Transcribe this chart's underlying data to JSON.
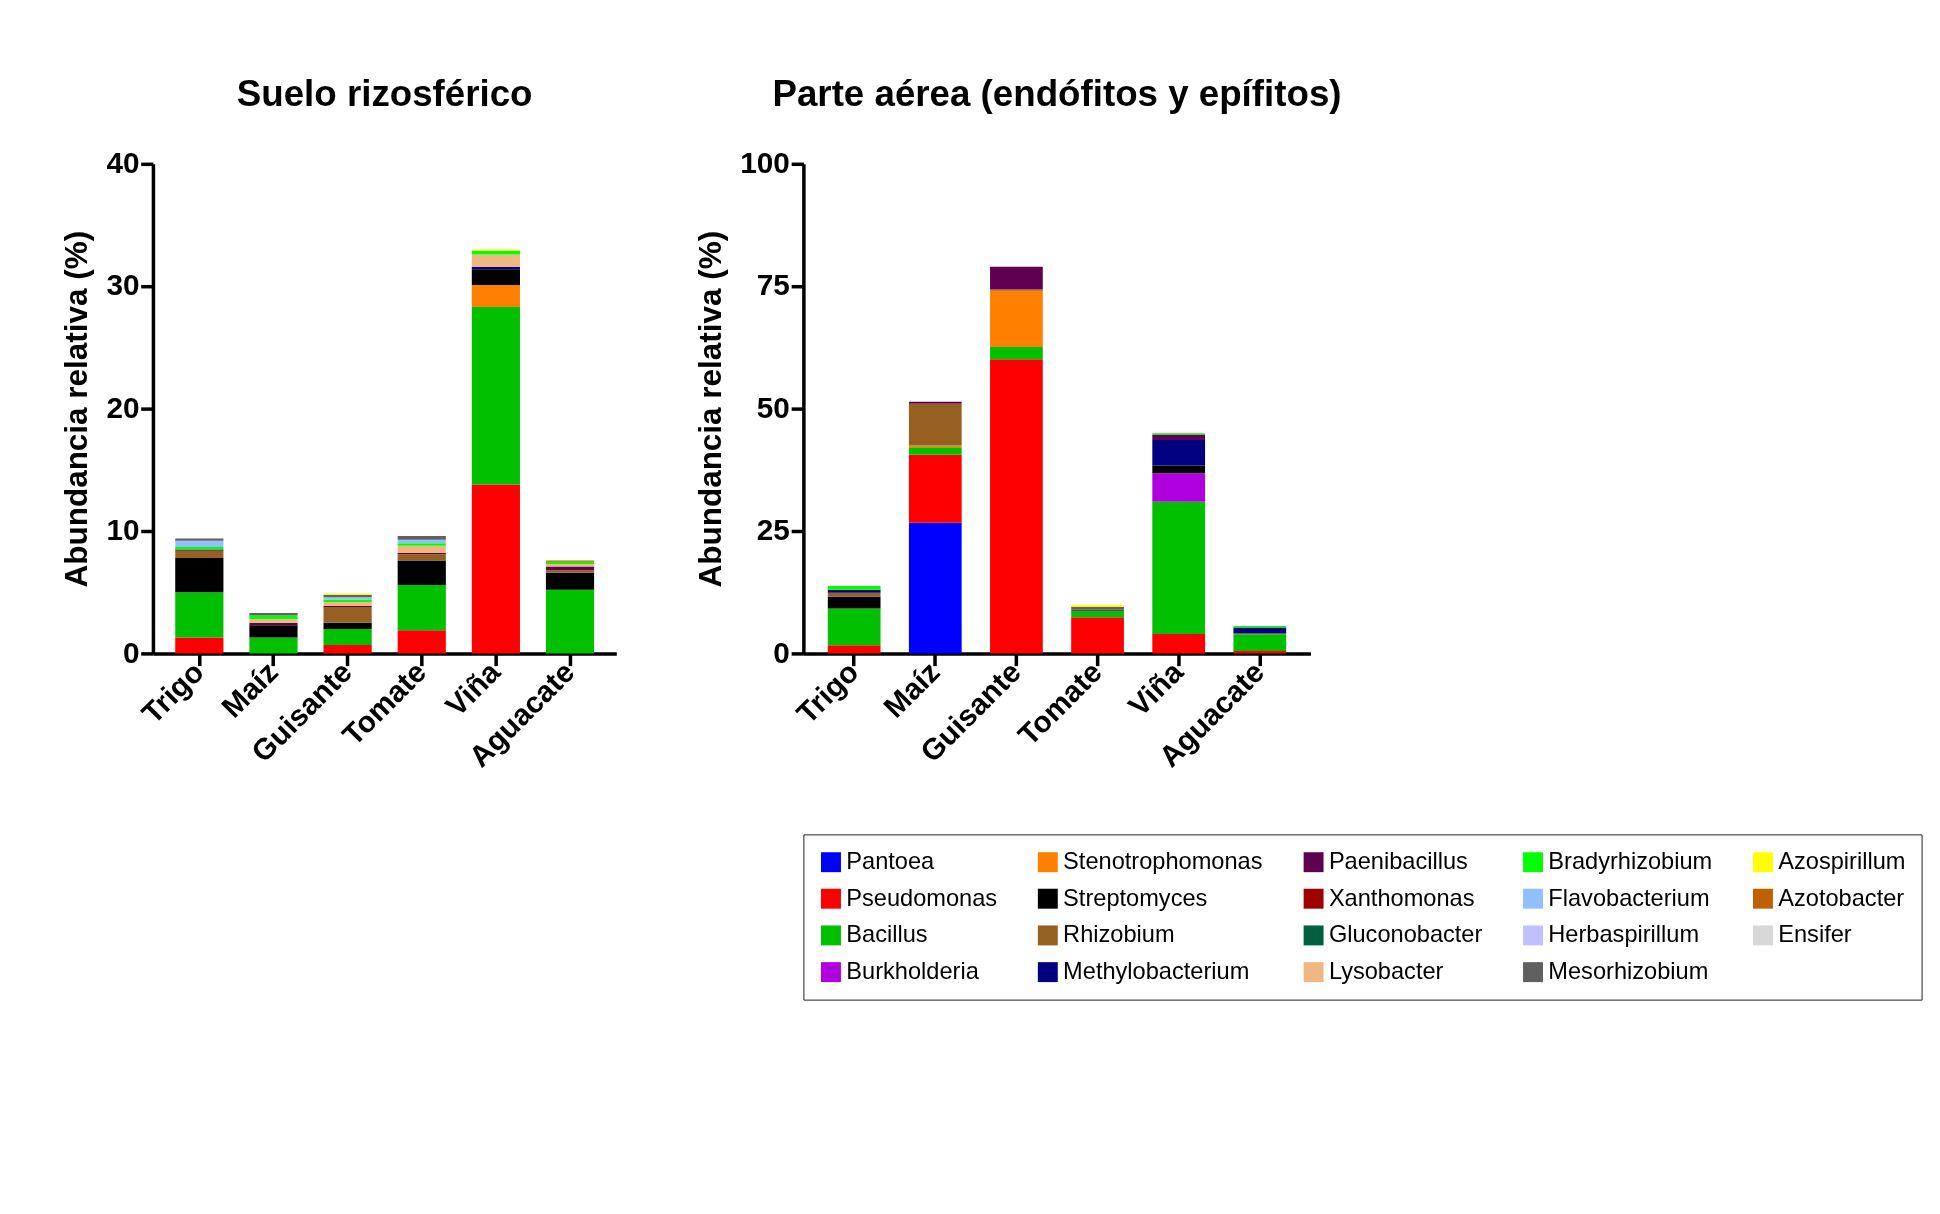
{
  "chart_data": [
    {
      "type": "bar",
      "stacked": true,
      "title": "Suelo rizosférico",
      "ylabel": "Abundancia relativa  (%)",
      "categories": [
        "Trigo",
        "Maíz",
        "Guisante",
        "Tomate",
        "Viña",
        "Aguacate"
      ],
      "ylim": [
        0,
        40
      ],
      "yticks": [
        0,
        10,
        20,
        30,
        40
      ],
      "grid": false,
      "legend": false,
      "series": [
        {
          "color": "#0000ff",
          "values": [
            null,
            null,
            null,
            null,
            null,
            null
          ]
        },
        {
          "color": "#ff0000",
          "values": [
            1.3,
            null,
            0.7,
            1.9,
            13.8,
            null
          ]
        },
        {
          "color": "#00c000",
          "values": [
            3.7,
            1.3,
            1.3,
            3.7,
            14.5,
            5.2
          ]
        },
        {
          "color": "#b000e0",
          "values": [
            null,
            null,
            null,
            null,
            null,
            null
          ]
        },
        {
          "color": "#ff8000",
          "values": [
            null,
            null,
            null,
            null,
            1.8,
            null
          ]
        },
        {
          "color": "#000000",
          "values": [
            2.8,
            1.0,
            0.5,
            2.0,
            1.3,
            1.4
          ]
        },
        {
          "color": "#956020",
          "values": [
            0.6,
            null,
            1.3,
            0.5,
            null,
            0.2
          ]
        },
        {
          "color": "#000080",
          "values": [
            null,
            null,
            null,
            null,
            0.2,
            null
          ]
        },
        {
          "color": "#600050",
          "values": [
            0.1,
            0.2,
            0.1,
            0.1,
            null,
            0.3
          ]
        },
        {
          "color": "#a00000",
          "values": [
            null,
            null,
            null,
            null,
            null,
            null
          ]
        },
        {
          "color": "#006040",
          "values": [
            null,
            null,
            null,
            null,
            null,
            null
          ]
        },
        {
          "color": "#f0b880",
          "values": [
            null,
            0.3,
            0.3,
            0.6,
            1.0,
            0.2
          ]
        },
        {
          "color": "#00ff00",
          "values": [
            0.2,
            0.3,
            0.2,
            0.2,
            0.3,
            0.2
          ]
        },
        {
          "color": "#90c0ff",
          "values": [
            0.5,
            null,
            0.2,
            0.3,
            null,
            null
          ]
        },
        {
          "color": "#c0c0ff",
          "values": [
            null,
            null,
            null,
            null,
            null,
            null
          ]
        },
        {
          "color": "#606060",
          "values": [
            0.2,
            0.2,
            0.2,
            0.3,
            null,
            null
          ]
        },
        {
          "color": "#ffff00",
          "values": [
            null,
            null,
            0.1,
            null,
            0.1,
            null
          ]
        },
        {
          "color": "#c06000",
          "values": [
            null,
            null,
            null,
            null,
            null,
            0.1
          ]
        },
        {
          "color": "#d8d8d8",
          "values": [
            null,
            null,
            null,
            null,
            null,
            null
          ]
        }
      ]
    },
    {
      "type": "bar",
      "stacked": true,
      "title": "Parte aérea (endófitos y epífitos)",
      "ylabel": "Abundancia relativa  (%)",
      "categories": [
        "Trigo",
        "Maíz",
        "Guisante",
        "Tomate",
        "Viña",
        "Aguacate"
      ],
      "ylim": [
        0,
        100
      ],
      "yticks": [
        0,
        25,
        50,
        75,
        100
      ],
      "grid": false,
      "legend": "bottom",
      "series": [
        {
          "name": "Pantoea",
          "color": "#0000ff",
          "values": [
            null,
            26.7,
            null,
            null,
            null,
            null
          ]
        },
        {
          "name": "Pseudomonas",
          "color": "#ff0000",
          "values": [
            1.7,
            13.9,
            60.1,
            7.4,
            4.0,
            0.5
          ]
        },
        {
          "name": "Bacillus",
          "color": "#00c000",
          "values": [
            7.5,
            1.5,
            2.5,
            1.3,
            27.0,
            3.4
          ]
        },
        {
          "name": "Burkholderia",
          "color": "#b000e0",
          "values": [
            null,
            null,
            null,
            null,
            5.8,
            null
          ]
        },
        {
          "name": "Stenotrophomonas",
          "color": "#ff8000",
          "values": [
            null,
            0.4,
            11.5,
            null,
            null,
            null
          ]
        },
        {
          "name": "Streptomyces",
          "color": "#000000",
          "values": [
            2.4,
            null,
            null,
            null,
            1.6,
            null
          ]
        },
        {
          "name": "Rhizobium",
          "color": "#956020",
          "values": [
            0.8,
            8.5,
            0.3,
            null,
            null,
            0.2
          ]
        },
        {
          "name": "Methylobacterium",
          "color": "#000080",
          "values": [
            0.6,
            null,
            null,
            null,
            5.2,
            1.2
          ]
        },
        {
          "name": "Paenibacillus",
          "color": "#600050",
          "values": [
            null,
            0.4,
            4.6,
            0.3,
            1.1,
            null
          ]
        },
        {
          "name": "Xanthomonas",
          "color": "#a00000",
          "values": [
            null,
            null,
            null,
            null,
            null,
            null
          ]
        },
        {
          "name": "Gluconobacter",
          "color": "#006040",
          "values": [
            null,
            null,
            null,
            null,
            null,
            null
          ]
        },
        {
          "name": "Lysobacter",
          "color": "#f0b880",
          "values": [
            null,
            null,
            null,
            null,
            null,
            null
          ]
        },
        {
          "name": "Bradyrhizobium",
          "color": "#00ff00",
          "values": [
            0.8,
            null,
            null,
            null,
            0.3,
            0.3
          ]
        },
        {
          "name": "Flavobacterium",
          "color": "#90c0ff",
          "values": [
            null,
            null,
            null,
            null,
            null,
            null
          ]
        },
        {
          "name": "Herbaspirillum",
          "color": "#c0c0ff",
          "values": [
            null,
            null,
            null,
            null,
            null,
            null
          ]
        },
        {
          "name": "Mesorhizobium",
          "color": "#606060",
          "values": [
            null,
            null,
            null,
            0.5,
            null,
            null
          ]
        },
        {
          "name": "Azospirillum",
          "color": "#ffff00",
          "values": [
            null,
            null,
            null,
            0.4,
            null,
            null
          ]
        },
        {
          "name": "Azotobacter",
          "color": "#c06000",
          "values": [
            null,
            null,
            null,
            null,
            null,
            null
          ]
        },
        {
          "name": "Ensifer",
          "color": "#d8d8d8",
          "values": [
            null,
            null,
            null,
            null,
            null,
            null
          ]
        }
      ]
    }
  ]
}
